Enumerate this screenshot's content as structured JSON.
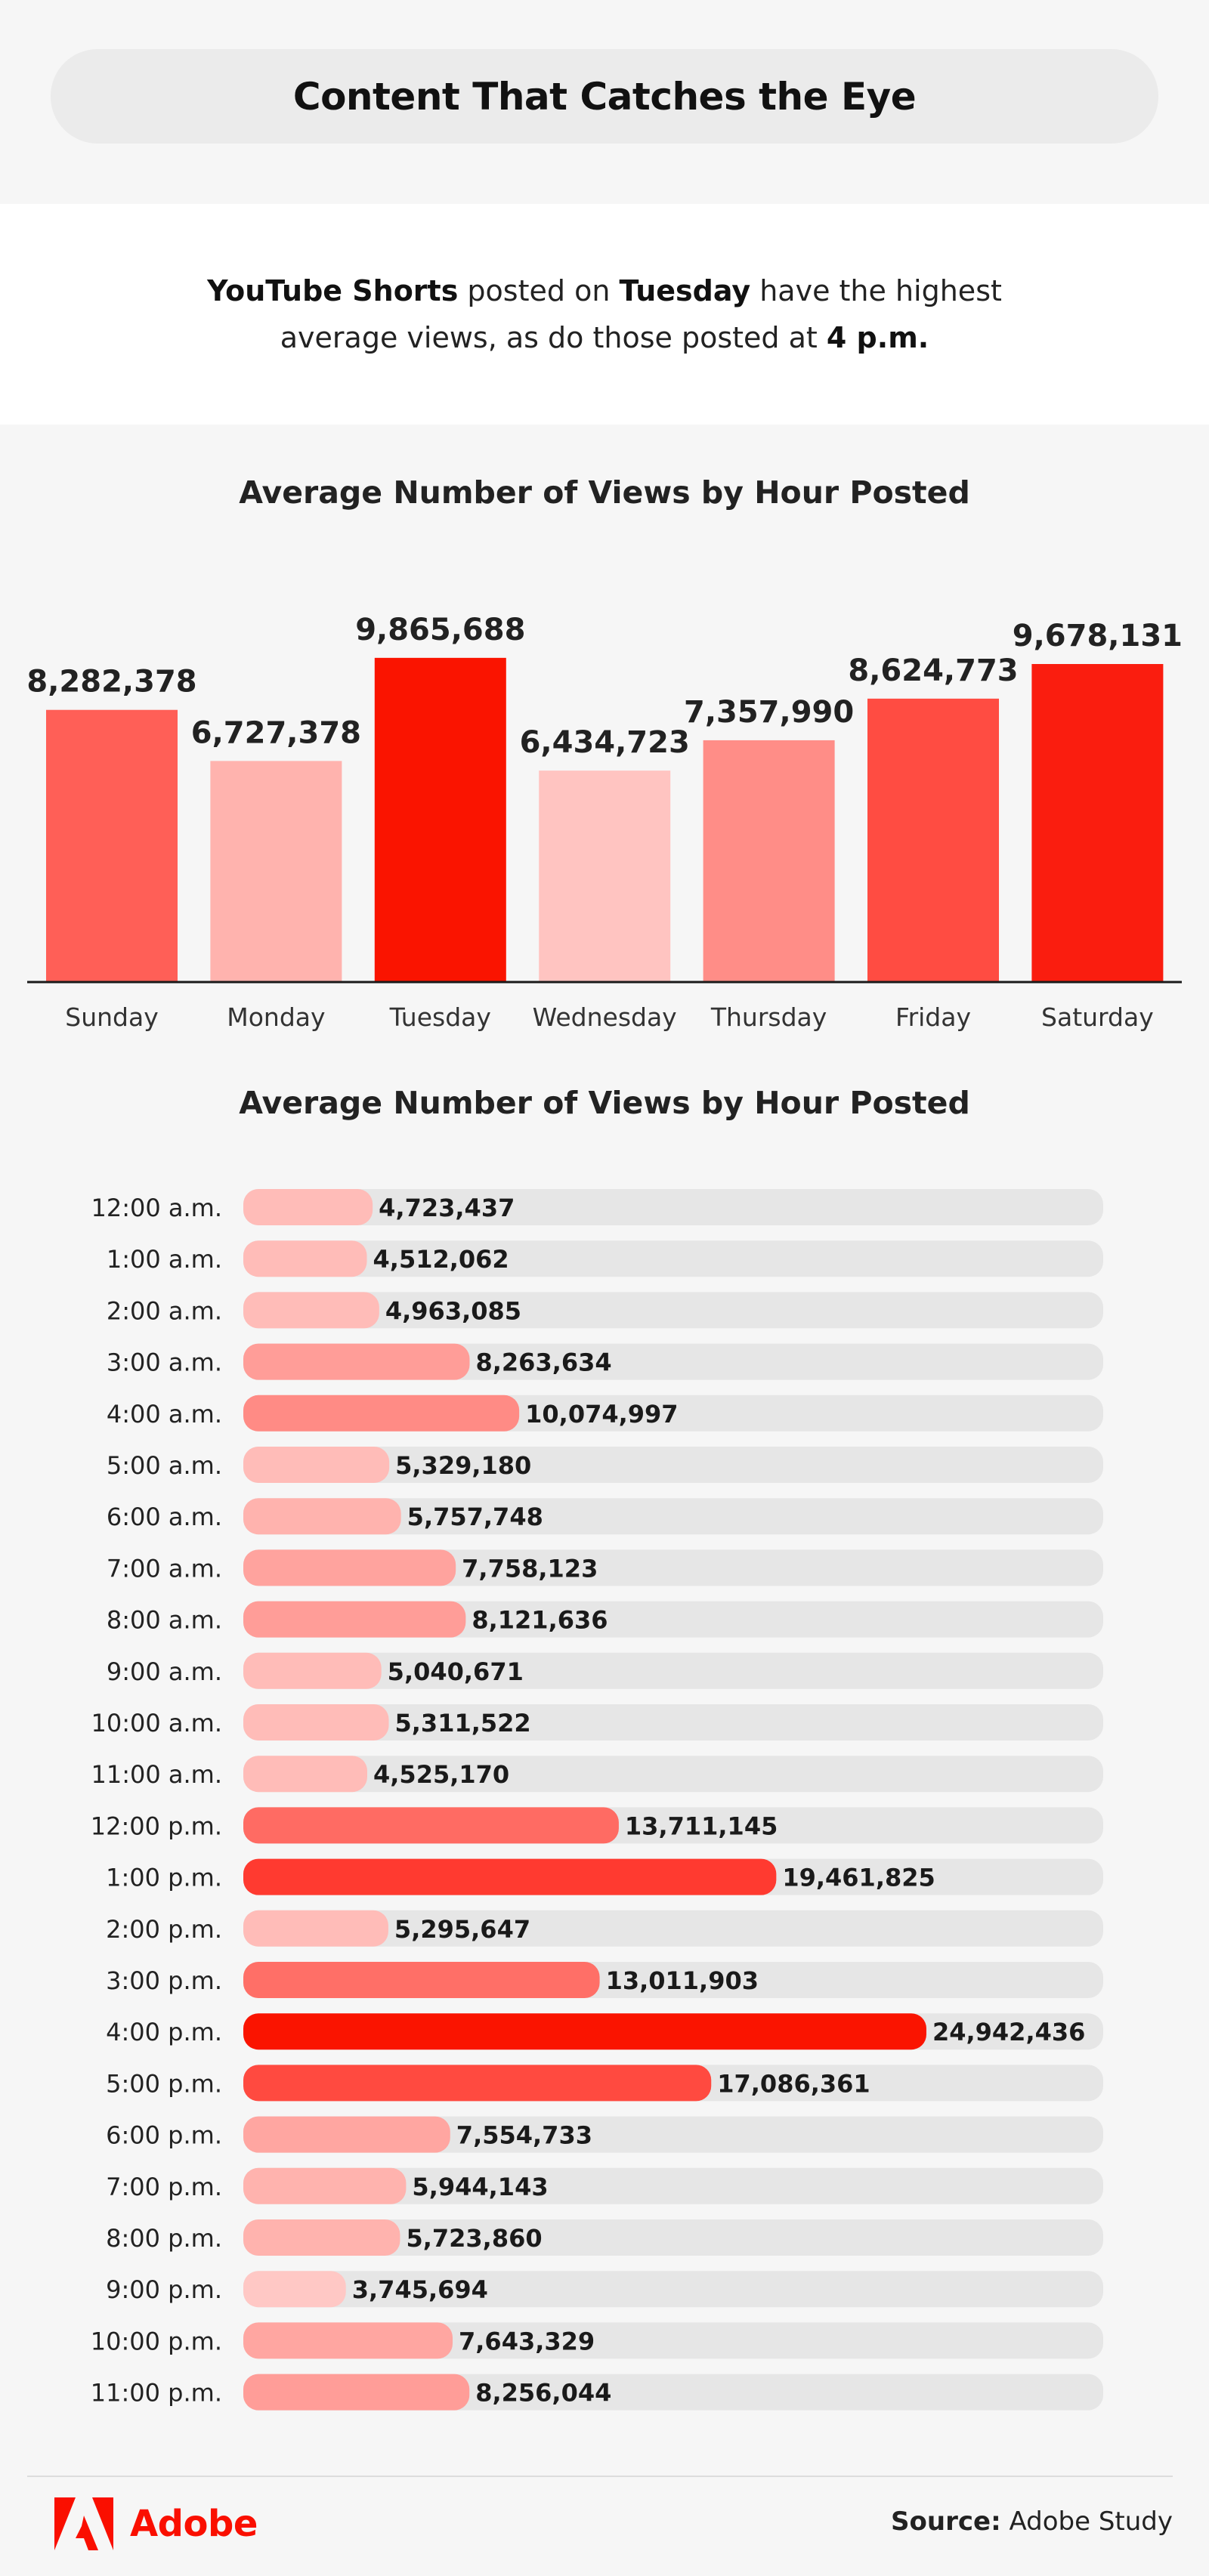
{
  "header": {
    "title": "Content That Catches the Eye"
  },
  "intro": {
    "part1": "YouTube Shorts",
    "part2": " posted on ",
    "part3": "Tuesday",
    "part4": " have the highest average views, as do those posted at ",
    "part5": "4 p.m."
  },
  "chart_data": [
    {
      "type": "bar",
      "title": "Average Number of Views by Hour Posted",
      "xlabel": "",
      "ylabel": "",
      "categories": [
        "Sunday",
        "Monday",
        "Tuesday",
        "Wednesday",
        "Thursday",
        "Friday",
        "Saturday"
      ],
      "values": [
        8282378,
        6727378,
        9865688,
        6434723,
        7357990,
        8624773,
        9678131
      ],
      "labels": [
        "8,282,378",
        "6,727,378",
        "9,865,688",
        "6,434,723",
        "7,357,990",
        "8,624,773",
        "9,678,131"
      ],
      "ylim": [
        0,
        10000000
      ],
      "colors": [
        "#ff5f57",
        "#ffb3ae",
        "#fa1400",
        "#ffc4c1",
        "#ff8d87",
        "#ff4c42",
        "#fa1d0f"
      ],
      "grid": false
    },
    {
      "type": "bar",
      "orientation": "horizontal",
      "title": "Average Number of Views by Hour Posted",
      "xlabel": "",
      "ylabel": "",
      "categories": [
        "12:00 a.m.",
        "1:00 a.m.",
        "2:00 a.m.",
        "3:00 a.m.",
        "4:00 a.m.",
        "5:00 a.m.",
        "6:00 a.m.",
        "7:00 a.m.",
        "8:00 a.m.",
        "9:00 a.m.",
        "10:00 a.m.",
        "11:00 a.m.",
        "12:00 p.m.",
        "1:00 p.m.",
        "2:00 p.m.",
        "3:00 p.m.",
        "4:00 p.m.",
        "5:00 p.m.",
        "6:00 p.m.",
        "7:00 p.m.",
        "8:00 p.m.",
        "9:00 p.m.",
        "10:00 p.m.",
        "11:00 p.m."
      ],
      "values": [
        4723437,
        4512062,
        4963085,
        8263634,
        10074997,
        5329180,
        5757748,
        7758123,
        8121636,
        5040671,
        5311522,
        4525170,
        13711145,
        19461825,
        5295647,
        13011903,
        24942436,
        17086361,
        7554733,
        5944143,
        5723860,
        3745694,
        7643329,
        8256044
      ],
      "labels": [
        "4,723,437",
        "4,512,062",
        "4,963,085",
        "8,263,634",
        "10,074,997",
        "5,329,180",
        "5,757,748",
        "7,758,123",
        "8,121,636",
        "5,040,671",
        "5,311,522",
        "4,525,170",
        "13,711,145",
        "19,461,825",
        "5,295,647",
        "13,011,903",
        "24,942,436",
        "17,086,361",
        "7,554,733",
        "5,944,143",
        "5,723,860",
        "3,745,694",
        "7,643,329",
        "8,256,044"
      ],
      "xlim": [
        0,
        31400000
      ],
      "colors": [
        "#ffbcb8",
        "#ffbcb8",
        "#ffbcb8",
        "#ff9d98",
        "#ff8b85",
        "#ffbcb8",
        "#ffb3ae",
        "#ffa39e",
        "#ff9d98",
        "#ffbcb8",
        "#ffbcb8",
        "#ffbcb8",
        "#ff6b63",
        "#ff3a30",
        "#ffbcb8",
        "#ff6f67",
        "#fa1400",
        "#ff4a40",
        "#ffa6a1",
        "#ffb3ae",
        "#ffb3ae",
        "#ffc8c5",
        "#ffa6a1",
        "#ff9d98"
      ],
      "track_color": "#e6e6e6",
      "grid": false
    }
  ],
  "footer": {
    "brand": "Adobe",
    "source_label": "Source:",
    "source_value": " Adobe Study"
  }
}
